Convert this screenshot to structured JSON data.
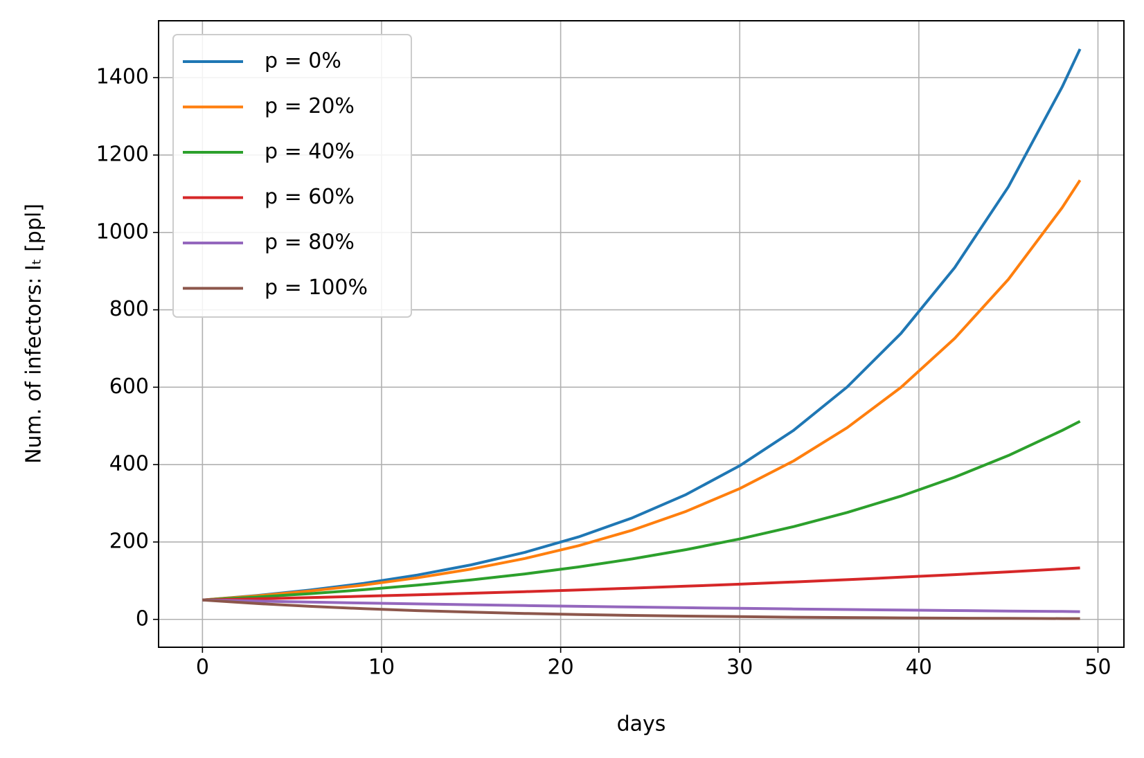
{
  "chart_data": {
    "type": "line",
    "xlabel": "days",
    "ylabel": "Num. of infectors: Iₜ [ppl]",
    "x": [
      0,
      3,
      6,
      9,
      12,
      15,
      18,
      21,
      24,
      27,
      30,
      33,
      36,
      39,
      42,
      45,
      48,
      49
    ],
    "series": [
      {
        "name": "p = 0%",
        "color": "#1f77b4",
        "values": [
          50,
          61.5,
          75.7,
          93.1,
          114.5,
          140.9,
          173.3,
          213.2,
          262.3,
          322.7,
          397,
          488.3,
          600.6,
          739,
          909,
          1118,
          1376,
          1474
        ]
      },
      {
        "name": "p = 20%",
        "color": "#ff7f0e",
        "values": [
          50,
          60.5,
          73.3,
          88.7,
          107.4,
          130,
          157.4,
          190.5,
          230.6,
          279.2,
          338,
          409.2,
          495.4,
          599.6,
          726,
          878.8,
          1064,
          1135
        ]
      },
      {
        "name": "p = 40%",
        "color": "#2ca02c",
        "values": [
          50,
          57.7,
          66.5,
          76.7,
          88.4,
          101.9,
          117.5,
          135.5,
          156.3,
          180.2,
          207.8,
          239.6,
          276.3,
          318.6,
          367.3,
          423.5,
          488.3,
          512
        ]
      },
      {
        "name": "p = 60%",
        "color": "#d62728",
        "values": [
          50,
          53.1,
          56.4,
          59.8,
          63.5,
          67.5,
          71.6,
          76.1,
          80.7,
          85.7,
          91,
          96.7,
          102.6,
          109,
          115.7,
          122.8,
          130.4,
          133
        ]
      },
      {
        "name": "p = 80%",
        "color": "#9467bd",
        "values": [
          50,
          47.3,
          44.7,
          42.3,
          40,
          37.8,
          35.7,
          33.8,
          31.9,
          30.2,
          28.5,
          27,
          25.5,
          24.1,
          22.8,
          21.6,
          20.4,
          20
        ]
      },
      {
        "name": "p = 100%",
        "color": "#8c564b",
        "values": [
          50,
          41.1,
          33.7,
          27.7,
          22.7,
          18.7,
          15.3,
          12.6,
          10.3,
          8.5,
          7,
          5.7,
          4.7,
          3.9,
          3.2,
          2.6,
          2.1,
          2
        ]
      }
    ],
    "xlim": [
      -2.45,
      51.45
    ],
    "xticks": [
      0,
      10,
      20,
      30,
      40,
      50
    ],
    "ylim": [
      -72,
      1547
    ],
    "yticks": [
      0,
      200,
      400,
      600,
      800,
      1000,
      1200,
      1400
    ],
    "grid": true,
    "legend": "upper left"
  }
}
